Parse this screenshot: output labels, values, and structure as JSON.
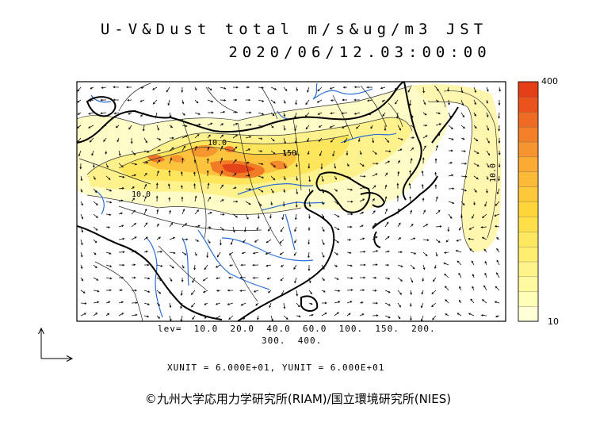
{
  "title": {
    "line1": "U-V&Dust total m/s&ug/m3 JST",
    "line2": "2020/06/12.03:00:00"
  },
  "colorbar": {
    "max_label": "400",
    "min_label": "10",
    "colors": [
      "#ffffd8",
      "#ffffb8",
      "#fffaa0",
      "#fff38a",
      "#ffee70",
      "#fee860",
      "#fedf48",
      "#fed63c",
      "#fdc83a",
      "#fbbb38",
      "#f9ab34",
      "#f69530",
      "#f38028",
      "#ef6a22",
      "#ea531c",
      "#e44018"
    ]
  },
  "contour_labels": [
    "10.0",
    "150.",
    "10.0",
    "10.0"
  ],
  "levels": {
    "line1": "lev=  10.0  20.0  40.0  60.0  100.  150.  200.",
    "line2": "300.  400."
  },
  "units": "XUNIT = 6.000E+01, YUNIT = 6.000E+01",
  "credit": "©九州大学応用力学研究所(RIAM)/国立環境研究所(NIES)"
}
